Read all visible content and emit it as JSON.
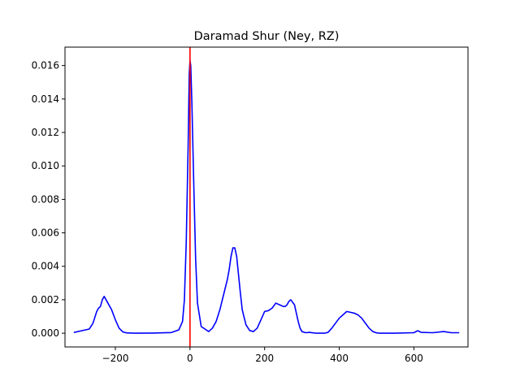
{
  "chart_data": {
    "type": "line",
    "title": "Daramad Shur (Ney, RZ)",
    "xlabel": "",
    "ylabel": "",
    "xlim": [
      -335,
      745
    ],
    "ylim": [
      -0.00082,
      0.0171
    ],
    "xticks": [
      -200,
      0,
      200,
      400,
      600
    ],
    "xtick_labels": [
      "−200",
      "0",
      "200",
      "400",
      "600"
    ],
    "yticks": [
      0.0,
      0.002,
      0.004,
      0.006,
      0.008,
      0.01,
      0.012,
      0.014,
      0.016
    ],
    "ytick_labels": [
      "0.000",
      "0.002",
      "0.004",
      "0.006",
      "0.008",
      "0.010",
      "0.012",
      "0.014",
      "0.016"
    ],
    "grid": false,
    "series": [
      {
        "color": "#0000ff",
        "x": [
          -310,
          -290,
          -270,
          -260,
          -250,
          -245,
          -240,
          -235,
          -230,
          -225,
          -220,
          -210,
          -200,
          -190,
          -180,
          -170,
          -150,
          -100,
          -50,
          -30,
          -20,
          -15,
          -10,
          -5,
          -2,
          0,
          2,
          5,
          10,
          15,
          20,
          30,
          50,
          60,
          70,
          80,
          90,
          100,
          105,
          110,
          115,
          120,
          125,
          130,
          135,
          140,
          150,
          160,
          170,
          180,
          190,
          200,
          210,
          220,
          230,
          240,
          250,
          255,
          260,
          265,
          270,
          280,
          285,
          290,
          295,
          300,
          310,
          320,
          330,
          340,
          350,
          360,
          370,
          380,
          400,
          420,
          430,
          440,
          450,
          460,
          470,
          480,
          490,
          500,
          510,
          520,
          550,
          600,
          610,
          620,
          650,
          680,
          700,
          720
        ],
        "y": [
          5e-05,
          0.00015,
          0.00025,
          0.0006,
          0.0013,
          0.0015,
          0.0016,
          0.002,
          0.0022,
          0.002,
          0.0018,
          0.0014,
          0.0008,
          0.0003,
          8e-05,
          2e-05,
          0.0,
          1e-05,
          4e-05,
          0.0002,
          0.0007,
          0.002,
          0.0055,
          0.0112,
          0.0155,
          0.0163,
          0.016,
          0.0138,
          0.009,
          0.0045,
          0.0018,
          0.0004,
          0.0001,
          0.0003,
          0.0007,
          0.0014,
          0.0023,
          0.0032,
          0.0038,
          0.0046,
          0.0051,
          0.0051,
          0.0046,
          0.0035,
          0.0024,
          0.0014,
          0.0005,
          0.00016,
          0.0001,
          0.0003,
          0.0008,
          0.0013,
          0.00135,
          0.0015,
          0.0018,
          0.0017,
          0.0016,
          0.0016,
          0.0017,
          0.0019,
          0.002,
          0.0017,
          0.0012,
          0.0007,
          0.0003,
          0.0001,
          3e-05,
          5e-05,
          2e-05,
          0.0,
          0.0,
          0.0,
          5e-05,
          0.0003,
          0.0009,
          0.0013,
          0.00125,
          0.0012,
          0.0011,
          0.0009,
          0.0006,
          0.0003,
          0.0001,
          2e-05,
          0.0,
          0.0,
          0.0,
          3e-05,
          0.00015,
          5e-05,
          3e-05,
          0.0001,
          3e-05,
          3e-05
        ]
      }
    ],
    "vline": {
      "x": 0,
      "color": "#ff0000"
    }
  }
}
